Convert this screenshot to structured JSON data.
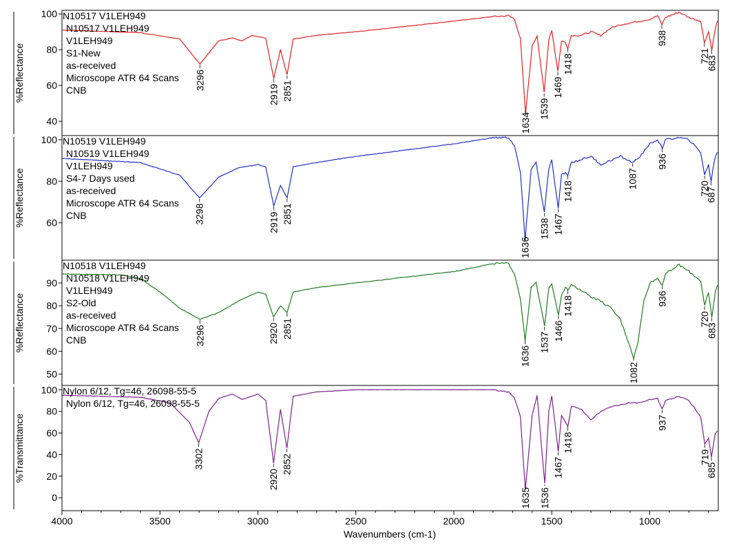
{
  "chart_data": {
    "type": "line",
    "xlabel": "Wavenumbers (cm-1)",
    "xlim": [
      4000,
      650
    ],
    "x_ticks": [
      "4000",
      "3500",
      "3000",
      "2500",
      "2000",
      "1500",
      "1000"
    ],
    "panels": [
      {
        "name": "N10517 V1LEH949",
        "ylabel": "%Reflectance",
        "ylim": [
          32,
          102
        ],
        "y_ticks": [
          100,
          80,
          60,
          40
        ],
        "color": "#e02020",
        "annotation": [
          "N10517 V1LEH949",
          "N10517 V1LEH949",
          "V1LEH949",
          "S1-New",
          "as-received",
          "Microscope ATR 64 Scans",
          "CNB"
        ],
        "baseline": [
          [
            4000,
            91
          ],
          [
            3600,
            89.5
          ],
          [
            3400,
            86
          ],
          [
            3296,
            72
          ],
          [
            3200,
            85
          ],
          [
            3130,
            86.5
          ],
          [
            3080,
            85
          ],
          [
            3030,
            88
          ],
          [
            2960,
            86.5
          ],
          [
            2919,
            64
          ],
          [
            2885,
            80
          ],
          [
            2851,
            66
          ],
          [
            2820,
            86
          ],
          [
            2700,
            88
          ],
          [
            2500,
            90
          ],
          [
            2000,
            96
          ],
          [
            1800,
            98.5
          ],
          [
            1720,
            99
          ],
          [
            1690,
            97
          ],
          [
            1660,
            86
          ],
          [
            1634,
            44
          ],
          [
            1600,
            82
          ],
          [
            1575,
            88
          ],
          [
            1539,
            56
          ],
          [
            1515,
            86
          ],
          [
            1500,
            91
          ],
          [
            1469,
            68
          ],
          [
            1450,
            85
          ],
          [
            1430,
            84
          ],
          [
            1418,
            81
          ],
          [
            1400,
            88
          ],
          [
            1350,
            88
          ],
          [
            1300,
            90
          ],
          [
            1250,
            88
          ],
          [
            1200,
            92
          ],
          [
            1150,
            94
          ],
          [
            1100,
            95
          ],
          [
            1050,
            96
          ],
          [
            1000,
            97
          ],
          [
            960,
            99
          ],
          [
            938,
            94
          ],
          [
            920,
            98
          ],
          [
            850,
            101
          ],
          [
            800,
            98
          ],
          [
            740,
            96
          ],
          [
            721,
            84
          ],
          [
            700,
            90
          ],
          [
            683,
            80
          ],
          [
            665,
            92
          ],
          [
            655,
            96
          ]
        ],
        "peaks": [
          {
            "x": 3296,
            "y": 72,
            "label": "3296"
          },
          {
            "x": 2919,
            "y": 64,
            "label": "2919"
          },
          {
            "x": 2851,
            "y": 66,
            "label": "2851"
          },
          {
            "x": 1634,
            "y": 44,
            "label": "1634"
          },
          {
            "x": 1539,
            "y": 56,
            "label": "1539"
          },
          {
            "x": 1469,
            "y": 68,
            "label": "1469"
          },
          {
            "x": 1418,
            "y": 81,
            "label": "1418"
          },
          {
            "x": 938,
            "y": 94,
            "label": "938"
          },
          {
            "x": 721,
            "y": 84,
            "label": "721"
          },
          {
            "x": 683,
            "y": 80,
            "label": "683"
          }
        ]
      },
      {
        "name": "N10519 V1LEH949",
        "ylabel": "%Reflectance",
        "ylim": [
          42,
          102
        ],
        "y_ticks": [
          100,
          80,
          60
        ],
        "color": "#1f2fc0",
        "annotation": [
          "N10519 V1LEH949",
          "N10519 V1LEH949",
          "V1LEH949",
          "S4-7 Days used",
          "as-received",
          "Microscope ATR 64 Scans",
          "CNB"
        ],
        "baseline": [
          [
            4000,
            91
          ],
          [
            3600,
            89
          ],
          [
            3400,
            83
          ],
          [
            3298,
            72
          ],
          [
            3200,
            82
          ],
          [
            3100,
            86.5
          ],
          [
            3000,
            88
          ],
          [
            2960,
            87
          ],
          [
            2919,
            68
          ],
          [
            2885,
            78
          ],
          [
            2851,
            72
          ],
          [
            2820,
            87
          ],
          [
            2700,
            89
          ],
          [
            2500,
            92
          ],
          [
            2000,
            98
          ],
          [
            1800,
            101
          ],
          [
            1720,
            101
          ],
          [
            1690,
            97
          ],
          [
            1660,
            84
          ],
          [
            1636,
            52
          ],
          [
            1605,
            86
          ],
          [
            1580,
            89
          ],
          [
            1538,
            65
          ],
          [
            1515,
            86
          ],
          [
            1500,
            90
          ],
          [
            1467,
            67
          ],
          [
            1450,
            83
          ],
          [
            1430,
            84
          ],
          [
            1418,
            83
          ],
          [
            1400,
            89
          ],
          [
            1300,
            92
          ],
          [
            1250,
            88
          ],
          [
            1200,
            90
          ],
          [
            1150,
            92
          ],
          [
            1087,
            89
          ],
          [
            1050,
            92
          ],
          [
            1000,
            98
          ],
          [
            960,
            100
          ],
          [
            936,
            96
          ],
          [
            920,
            100
          ],
          [
            850,
            101
          ],
          [
            800,
            100
          ],
          [
            740,
            94
          ],
          [
            720,
            83
          ],
          [
            700,
            88
          ],
          [
            687,
            80
          ],
          [
            670,
            90
          ],
          [
            655,
            94
          ]
        ],
        "peaks": [
          {
            "x": 3298,
            "y": 72,
            "label": "3298"
          },
          {
            "x": 2919,
            "y": 68,
            "label": "2919"
          },
          {
            "x": 2851,
            "y": 72,
            "label": "2851"
          },
          {
            "x": 1636,
            "y": 52,
            "label": "1636"
          },
          {
            "x": 1538,
            "y": 65,
            "label": "1538"
          },
          {
            "x": 1467,
            "y": 67,
            "label": "1467"
          },
          {
            "x": 1418,
            "y": 83,
            "label": "1418"
          },
          {
            "x": 1087,
            "y": 89,
            "label": "1087"
          },
          {
            "x": 936,
            "y": 96,
            "label": "936"
          },
          {
            "x": 720,
            "y": 83,
            "label": "720"
          },
          {
            "x": 687,
            "y": 80,
            "label": "687"
          }
        ]
      },
      {
        "name": "N10518 V1LEH949",
        "ylabel": "%Reflectance",
        "ylim": [
          45,
          100
        ],
        "y_ticks": [
          90,
          80,
          70,
          60,
          50
        ],
        "color": "#1f7a1f",
        "annotation": [
          "N10518 V1LEH949",
          "N10518 V1LEH949",
          "V1LEH949",
          "S2-Old",
          "as-received",
          "Microscope ATR 64 Scans",
          "CNB"
        ],
        "baseline": [
          [
            4000,
            94
          ],
          [
            3700,
            93.5
          ],
          [
            3600,
            92
          ],
          [
            3500,
            86
          ],
          [
            3400,
            79
          ],
          [
            3296,
            74
          ],
          [
            3200,
            77
          ],
          [
            3100,
            82
          ],
          [
            3000,
            86
          ],
          [
            2960,
            85
          ],
          [
            2920,
            75
          ],
          [
            2885,
            80
          ],
          [
            2851,
            77
          ],
          [
            2820,
            86
          ],
          [
            2700,
            88
          ],
          [
            2500,
            90
          ],
          [
            2000,
            95
          ],
          [
            1800,
            98.5
          ],
          [
            1720,
            98.5
          ],
          [
            1690,
            94
          ],
          [
            1660,
            83
          ],
          [
            1636,
            65
          ],
          [
            1605,
            88
          ],
          [
            1580,
            90
          ],
          [
            1537,
            71
          ],
          [
            1515,
            88
          ],
          [
            1500,
            90
          ],
          [
            1466,
            76
          ],
          [
            1450,
            85
          ],
          [
            1430,
            88
          ],
          [
            1418,
            87
          ],
          [
            1400,
            89
          ],
          [
            1350,
            87
          ],
          [
            1300,
            84
          ],
          [
            1250,
            82
          ],
          [
            1200,
            79
          ],
          [
            1150,
            74
          ],
          [
            1100,
            62
          ],
          [
            1082,
            57
          ],
          [
            1060,
            64
          ],
          [
            1030,
            82
          ],
          [
            1000,
            90
          ],
          [
            960,
            92
          ],
          [
            936,
            89
          ],
          [
            920,
            94
          ],
          [
            850,
            98
          ],
          [
            800,
            95
          ],
          [
            740,
            91
          ],
          [
            720,
            80
          ],
          [
            700,
            86
          ],
          [
            683,
            75
          ],
          [
            665,
            86
          ],
          [
            655,
            89
          ]
        ],
        "peaks": [
          {
            "x": 3296,
            "y": 74,
            "label": "3296"
          },
          {
            "x": 2920,
            "y": 75,
            "label": "2920"
          },
          {
            "x": 2851,
            "y": 77,
            "label": "2851"
          },
          {
            "x": 1636,
            "y": 65,
            "label": "1636"
          },
          {
            "x": 1537,
            "y": 71,
            "label": "1537"
          },
          {
            "x": 1466,
            "y": 76,
            "label": "1466"
          },
          {
            "x": 1418,
            "y": 87,
            "label": "1418"
          },
          {
            "x": 1082,
            "y": 57,
            "label": "1082"
          },
          {
            "x": 936,
            "y": 89,
            "label": "936"
          },
          {
            "x": 720,
            "y": 80,
            "label": "720"
          },
          {
            "x": 683,
            "y": 75,
            "label": "683"
          }
        ]
      },
      {
        "name": "Nylon 6/12, Tg=46, 26098-55-5",
        "ylabel": "%Transmittance",
        "ylim": [
          -12,
          104
        ],
        "y_ticks": [
          100,
          80,
          60,
          40,
          20,
          0
        ],
        "color": "#7a1f8a",
        "annotation": [
          "Nylon 6/12, Tg=46, 26098-55-5",
          "Nylon 6/12, Tg=46, 26098-55-5"
        ],
        "baseline": [
          [
            4000,
            95
          ],
          [
            3600,
            93
          ],
          [
            3450,
            88
          ],
          [
            3350,
            70
          ],
          [
            3302,
            51
          ],
          [
            3250,
            80
          ],
          [
            3200,
            92
          ],
          [
            3130,
            96
          ],
          [
            3080,
            91
          ],
          [
            3000,
            96
          ],
          [
            2960,
            90
          ],
          [
            2920,
            32
          ],
          [
            2885,
            82
          ],
          [
            2852,
            46
          ],
          [
            2820,
            94
          ],
          [
            2700,
            98
          ],
          [
            2500,
            100
          ],
          [
            2000,
            100
          ],
          [
            1800,
            100
          ],
          [
            1720,
            98
          ],
          [
            1690,
            92
          ],
          [
            1660,
            75
          ],
          [
            1635,
            8
          ],
          [
            1600,
            76
          ],
          [
            1575,
            95
          ],
          [
            1536,
            13
          ],
          [
            1515,
            80
          ],
          [
            1500,
            94
          ],
          [
            1467,
            43
          ],
          [
            1450,
            76
          ],
          [
            1430,
            70
          ],
          [
            1418,
            66
          ],
          [
            1400,
            85
          ],
          [
            1350,
            82
          ],
          [
            1300,
            72
          ],
          [
            1250,
            80
          ],
          [
            1200,
            84
          ],
          [
            1150,
            86
          ],
          [
            1100,
            88
          ],
          [
            1050,
            88
          ],
          [
            1000,
            91
          ],
          [
            960,
            92
          ],
          [
            937,
            82
          ],
          [
            920,
            90
          ],
          [
            850,
            94
          ],
          [
            800,
            90
          ],
          [
            740,
            75
          ],
          [
            719,
            50
          ],
          [
            700,
            55
          ],
          [
            685,
            38
          ],
          [
            665,
            60
          ],
          [
            655,
            62
          ]
        ],
        "peaks": [
          {
            "x": 3302,
            "y": 51,
            "label": "3302"
          },
          {
            "x": 2920,
            "y": 32,
            "label": "2920"
          },
          {
            "x": 2852,
            "y": 46,
            "label": "2852"
          },
          {
            "x": 1635,
            "y": 8,
            "label": "1635"
          },
          {
            "x": 1536,
            "y": 13,
            "label": "1536"
          },
          {
            "x": 1467,
            "y": 43,
            "label": "1467"
          },
          {
            "x": 1418,
            "y": 66,
            "label": "1418"
          },
          {
            "x": 937,
            "y": 82,
            "label": "937"
          },
          {
            "x": 719,
            "y": 50,
            "label": "719"
          },
          {
            "x": 685,
            "y": 38,
            "label": "685"
          }
        ]
      }
    ]
  }
}
